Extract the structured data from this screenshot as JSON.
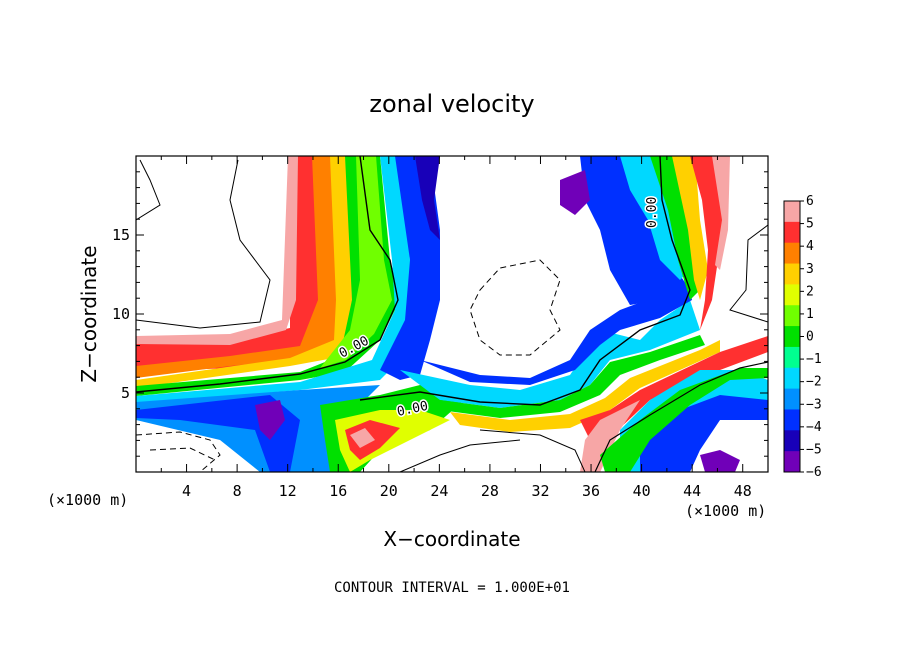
{
  "chart_data": {
    "type": "heatmap",
    "title": "zonal velocity",
    "xlabel": "X−coordinate",
    "ylabel": "Z−coordinate",
    "x_unit": "(×1000 m)",
    "y_unit": "(×1000 m)",
    "xlim": [
      0,
      50
    ],
    "ylim": [
      0,
      20
    ],
    "x_ticks": [
      4,
      8,
      12,
      16,
      20,
      24,
      28,
      32,
      36,
      40,
      44,
      48
    ],
    "y_ticks": [
      5,
      10,
      15
    ],
    "colorbar": {
      "min": -6,
      "max": 6,
      "ticks": [
        6,
        5,
        4,
        3,
        2,
        1,
        0,
        -1,
        -2,
        -3,
        -4,
        -5,
        -6
      ],
      "tick_labels": [
        "6",
        "5",
        "4",
        "3",
        "2",
        "1",
        "0",
        "−1",
        "−2",
        "−3",
        "−4",
        "−5",
        "−6"
      ],
      "colors": [
        "#f7a6a6",
        "#ff3030",
        "#ff8000",
        "#ffd000",
        "#e0ff00",
        "#70ff00",
        "#00e000",
        "#00ff90",
        "#00d8ff",
        "#0090ff",
        "#0030ff",
        "#1800b8",
        "#7000b8"
      ]
    },
    "contour_labels": [
      "0.00",
      "0.00",
      "0.00"
    ],
    "contour_interval": "CONTOUR INTERVAL = 1.000E+01"
  }
}
